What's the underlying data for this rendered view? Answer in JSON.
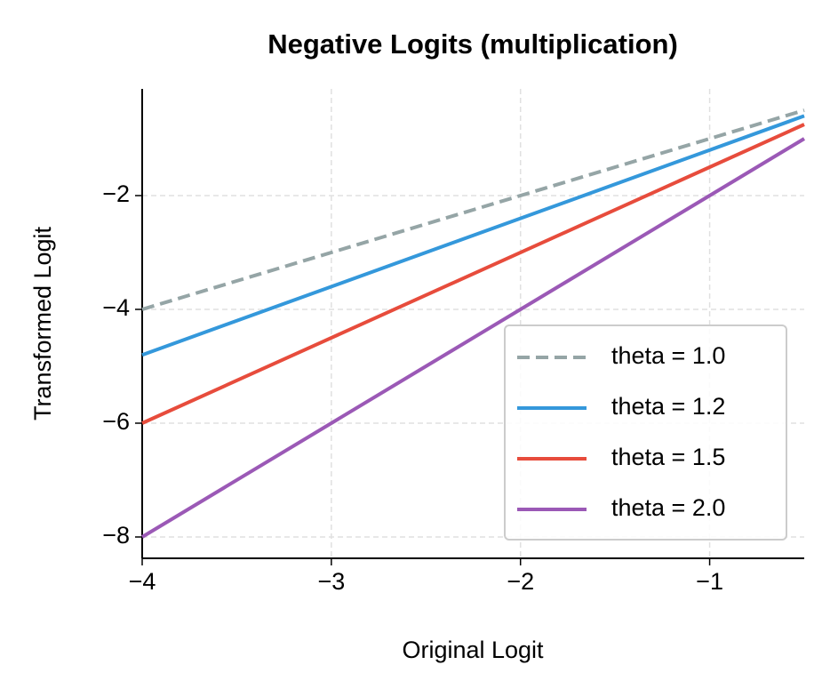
{
  "chart_data": {
    "type": "line",
    "title": "Negative Logits (multiplication)",
    "x_label": "Original Logit",
    "y_label": "Transformed Logit",
    "x": [
      -4,
      -0.5
    ],
    "series": [
      {
        "name": "theta = 1.0",
        "color": "#95a5a6",
        "linestyle": "dashed",
        "values": [
          -4,
          -0.5
        ]
      },
      {
        "name": "theta = 1.2",
        "color": "#3498db",
        "linestyle": "solid",
        "values": [
          -4.8,
          -0.6
        ]
      },
      {
        "name": "theta = 1.5",
        "color": "#e74c3c",
        "linestyle": "solid",
        "values": [
          -6,
          -0.75
        ]
      },
      {
        "name": "theta = 2.0",
        "color": "#9b59b6",
        "linestyle": "solid",
        "values": [
          -8,
          -1
        ]
      }
    ],
    "xlim": [
      -4,
      -0.5
    ],
    "xticks": [
      {
        "value": -4,
        "label": "−4"
      },
      {
        "value": -3,
        "label": "−3"
      },
      {
        "value": -2,
        "label": "−2"
      },
      {
        "value": -1,
        "label": "−1"
      }
    ],
    "ylim": [
      -8.375,
      -0.125
    ],
    "yticks": [
      {
        "value": -8,
        "label": "−8"
      },
      {
        "value": -6,
        "label": "−6"
      },
      {
        "value": -4,
        "label": "−4"
      },
      {
        "value": -2,
        "label": "−2"
      }
    ],
    "grid": true,
    "legend": "lower right"
  }
}
